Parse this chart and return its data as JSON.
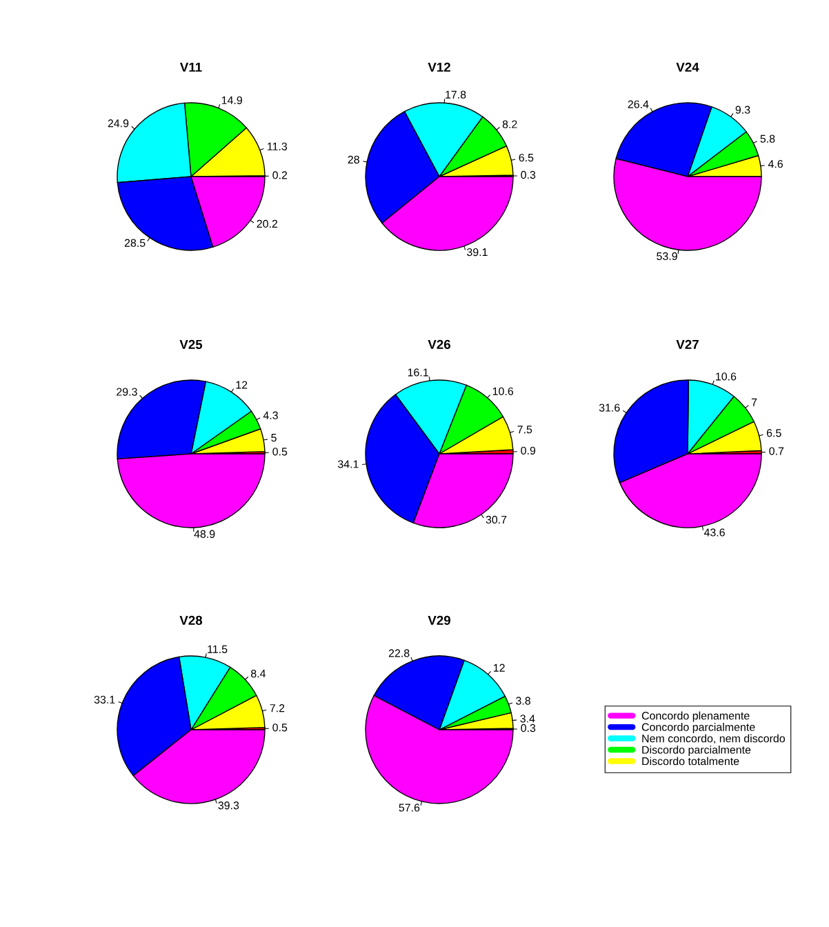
{
  "chart_data": [
    {
      "type": "pie",
      "title": "V11",
      "categories": [
        null,
        "Discordo totalmente",
        "Discordo parcialmente",
        "Nem concordo, nem discordo",
        "Concordo parcialmente",
        "Concordo plenamente"
      ],
      "values": [
        0.2,
        11.3,
        14.9,
        24.9,
        28.5,
        20.2
      ],
      "colors": [
        "#ff0000",
        "#ffff00",
        "#00ff00",
        "#00ffff",
        "#0000ff",
        "#ff00ff"
      ],
      "data_labels": true,
      "legend": "bottom right"
    },
    {
      "type": "pie",
      "title": "V12",
      "categories": [
        null,
        null,
        null,
        null,
        null,
        null
      ],
      "values": [
        0.3,
        6.5,
        8.2,
        17.8,
        28,
        39.1
      ],
      "colors": [
        "#ff0000",
        "#ffff00",
        "#00ff00",
        "#00ffff",
        "#0000ff",
        "#ff00ff"
      ],
      "data_labels": true
    },
    {
      "type": "pie",
      "title": "V24",
      "categories": [
        null,
        null,
        null,
        null,
        null
      ],
      "values": [
        4.6,
        5.8,
        9.3,
        26.4,
        53.9
      ],
      "colors": [
        "#ffff00",
        "#00ff00",
        "#00ffff",
        "#0000ff",
        "#ff00ff"
      ],
      "data_labels": true
    },
    {
      "type": "pie",
      "title": "V25",
      "categories": [
        null,
        null,
        null,
        null,
        null,
        null
      ],
      "values": [
        0.5,
        5,
        4.3,
        12,
        29.3,
        48.9
      ],
      "colors": [
        "#ff0000",
        "#ffff00",
        "#00ff00",
        "#00ffff",
        "#0000ff",
        "#ff00ff"
      ],
      "data_labels": true
    },
    {
      "type": "pie",
      "title": "V26",
      "categories": [
        null,
        null,
        null,
        null,
        null,
        null
      ],
      "values": [
        0.9,
        7.5,
        10.6,
        16.1,
        34.1,
        30.7
      ],
      "colors": [
        "#ff0000",
        "#ffff00",
        "#00ff00",
        "#00ffff",
        "#0000ff",
        "#ff00ff"
      ],
      "data_labels": true
    },
    {
      "type": "pie",
      "title": "V27",
      "categories": [
        null,
        null,
        null,
        null,
        null,
        null
      ],
      "values": [
        0.7,
        6.5,
        7,
        10.6,
        31.6,
        43.6
      ],
      "colors": [
        "#ff0000",
        "#ffff00",
        "#00ff00",
        "#00ffff",
        "#0000ff",
        "#ff00ff"
      ],
      "data_labels": true
    },
    {
      "type": "pie",
      "title": "V28",
      "categories": [
        null,
        null,
        null,
        null,
        null,
        null
      ],
      "values": [
        0.5,
        7.2,
        8.4,
        11.5,
        33.1,
        39.3
      ],
      "colors": [
        "#ff0000",
        "#ffff00",
        "#00ff00",
        "#00ffff",
        "#0000ff",
        "#ff00ff"
      ],
      "data_labels": true
    },
    {
      "type": "pie",
      "title": "V29",
      "categories": [
        null,
        null,
        null,
        null,
        null,
        null
      ],
      "values": [
        0.3,
        3.4,
        3.8,
        12,
        22.8,
        57.6
      ],
      "colors": [
        "#ff0000",
        "#ffff00",
        "#00ff00",
        "#00ffff",
        "#0000ff",
        "#ff00ff"
      ],
      "data_labels": true
    }
  ]
}
